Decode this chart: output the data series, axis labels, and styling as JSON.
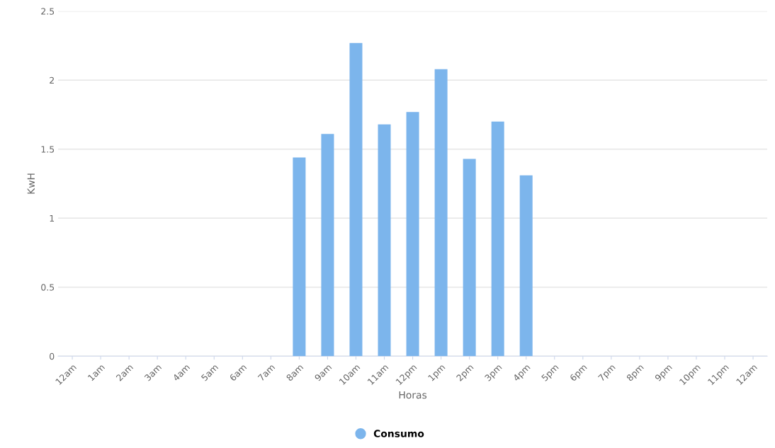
{
  "chart_data": {
    "type": "bar",
    "xlabel": "Horas",
    "ylabel": "KwH",
    "categories": [
      "12am",
      "1am",
      "2am",
      "3am",
      "4am",
      "5am",
      "6am",
      "7am",
      "8am",
      "9am",
      "10am",
      "11am",
      "12pm",
      "1pm",
      "2pm",
      "3pm",
      "4pm",
      "5pm",
      "6pm",
      "7pm",
      "8pm",
      "9pm",
      "10pm",
      "11pm",
      "12am"
    ],
    "series": [
      {
        "name": "Consumo",
        "color": "#7cb5ec",
        "values": [
          0,
          0,
          0,
          0,
          0,
          0,
          0,
          0,
          1.44,
          1.61,
          2.27,
          1.68,
          1.77,
          2.08,
          1.43,
          1.7,
          1.31,
          0,
          0,
          0,
          0,
          0,
          0,
          0,
          0
        ]
      }
    ],
    "ylim": [
      0,
      2.5
    ],
    "yticks": [
      0,
      0.5,
      1,
      1.5,
      2,
      2.5
    ],
    "grid": "y",
    "legend": "bottom"
  }
}
